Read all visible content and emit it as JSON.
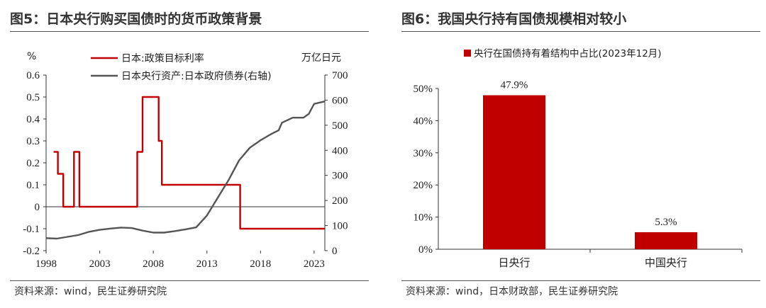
{
  "left_panel": {
    "title": "图5：日本央行购买国债时的货币政策背景",
    "source": "资料来源：wind，民生证券研究院"
  },
  "right_panel": {
    "title": "图6：我国央行持有国债规模相对较小",
    "source": "资料来源：wind，日本财政部，民生证券研究院"
  },
  "colors": {
    "red": "#c00000",
    "gray": "#555555"
  },
  "chart_data": [
    {
      "type": "line",
      "ylabel_left": "%",
      "ylabel_right": "万亿日元",
      "ylim_left": [
        -0.2,
        0.6
      ],
      "ylim_right": [
        0,
        700
      ],
      "yticks_left": [
        "-0.2",
        "-0.1",
        "0",
        "0.1",
        "0.2",
        "0.3",
        "0.4",
        "0.5",
        "0.6"
      ],
      "yticks_right": [
        "0",
        "100",
        "200",
        "300",
        "400",
        "500",
        "600",
        "700"
      ],
      "xlim": [
        1998,
        2024
      ],
      "xticks": [
        "1998",
        "2003",
        "2008",
        "2013",
        "2018",
        "2023"
      ],
      "legend_position": "top-center",
      "series": [
        {
          "name": "日本:政策目标利率",
          "axis": "left",
          "color": "#c00000",
          "points": [
            [
              1998.7,
              0.25
            ],
            [
              1999.1,
              0.25
            ],
            [
              1999.1,
              0.15
            ],
            [
              1999.6,
              0.15
            ],
            [
              1999.6,
              0
            ],
            [
              2000.6,
              0
            ],
            [
              2000.6,
              0.25
            ],
            [
              2001.1,
              0.25
            ],
            [
              2001.1,
              0
            ],
            [
              2006.5,
              0
            ],
            [
              2006.5,
              0.25
            ],
            [
              2007.0,
              0.25
            ],
            [
              2007.0,
              0.5
            ],
            [
              2008.5,
              0.5
            ],
            [
              2008.5,
              0.3
            ],
            [
              2008.8,
              0.3
            ],
            [
              2008.8,
              0.1
            ],
            [
              2016.1,
              0.1
            ],
            [
              2016.1,
              -0.1
            ],
            [
              2024.0,
              -0.1
            ]
          ]
        },
        {
          "name": "日本央行资产:日本政府债券(右轴)",
          "axis": "right",
          "color": "#555555",
          "points": [
            [
              1998,
              50
            ],
            [
              1999,
              48
            ],
            [
              2000,
              55
            ],
            [
              2001,
              62
            ],
            [
              2002,
              75
            ],
            [
              2003,
              83
            ],
            [
              2004,
              88
            ],
            [
              2005,
              92
            ],
            [
              2006,
              90
            ],
            [
              2007,
              80
            ],
            [
              2008,
              72
            ],
            [
              2009,
              72
            ],
            [
              2010,
              78
            ],
            [
              2011,
              85
            ],
            [
              2012,
              93
            ],
            [
              2013,
              140
            ],
            [
              2014,
              210
            ],
            [
              2015,
              280
            ],
            [
              2016,
              360
            ],
            [
              2017,
              410
            ],
            [
              2018,
              440
            ],
            [
              2019,
              465
            ],
            [
              2019.7,
              480
            ],
            [
              2020,
              510
            ],
            [
              2021,
              530
            ],
            [
              2022,
              530
            ],
            [
              2022.5,
              545
            ],
            [
              2023,
              585
            ],
            [
              2024,
              595
            ]
          ]
        }
      ]
    },
    {
      "type": "bar",
      "legend": "央行在国债持有着结构中占比(2023年12月)",
      "legend_position": "top-center",
      "categories": [
        "日央行",
        "中国央行"
      ],
      "values": [
        47.9,
        5.3
      ],
      "value_labels": [
        "47.9%",
        "5.3%"
      ],
      "ylim": [
        0,
        50
      ],
      "yticks": [
        "0%",
        "10%",
        "20%",
        "30%",
        "40%",
        "50%"
      ],
      "color": "#c00000"
    }
  ]
}
